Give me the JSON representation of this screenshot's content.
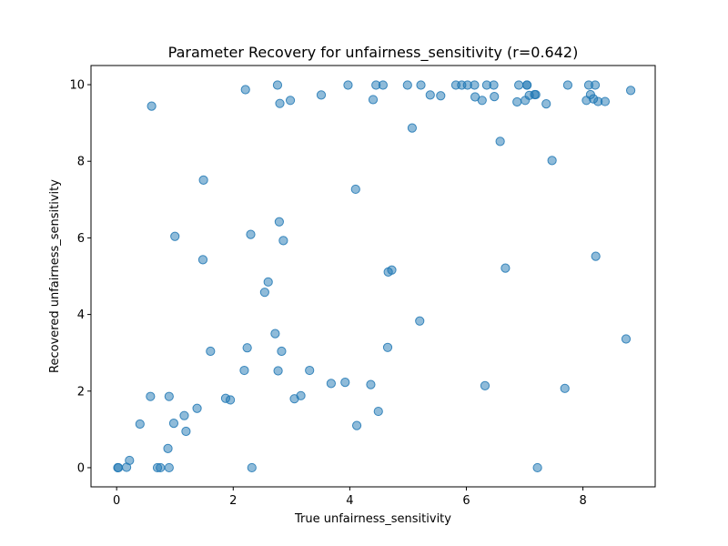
{
  "chart_data": {
    "type": "scatter",
    "title": "Parameter Recovery for unfairness_sensitivity (r=0.642)",
    "xlabel": "True unfairness_sensitivity",
    "ylabel": "Recovered unfairness_sensitivity",
    "xlim": [
      -0.44,
      9.24
    ],
    "ylim": [
      -0.5,
      10.5
    ],
    "xticks": [
      0,
      2,
      4,
      6,
      8
    ],
    "yticks": [
      0,
      2,
      4,
      6,
      8,
      10
    ],
    "grid": false,
    "legend": false,
    "marker_color": "#1f77b4",
    "marker_opacity": 0.5,
    "x": [
      0.02,
      0.03,
      0.17,
      0.22,
      0.4,
      0.58,
      0.6,
      0.7,
      0.75,
      0.88,
      0.9,
      0.9,
      0.98,
      1.0,
      1.16,
      1.19,
      1.38,
      1.48,
      1.49,
      1.61,
      1.87,
      1.95,
      2.19,
      2.21,
      2.24,
      2.3,
      2.32,
      2.54,
      2.6,
      2.72,
      2.76,
      2.77,
      2.79,
      2.8,
      2.83,
      2.86,
      2.98,
      3.05,
      3.16,
      3.31,
      3.51,
      3.68,
      3.92,
      3.97,
      4.1,
      4.12,
      4.36,
      4.4,
      4.45,
      4.49,
      4.57,
      4.65,
      4.66,
      4.72,
      4.99,
      5.07,
      5.2,
      5.22,
      5.38,
      5.56,
      5.82,
      5.92,
      6.02,
      6.14,
      6.15,
      6.27,
      6.32,
      6.35,
      6.47,
      6.48,
      6.58,
      6.67,
      6.87,
      6.9,
      7.01,
      7.04,
      7.04,
      7.08,
      7.17,
      7.19,
      7.22,
      7.37,
      7.47,
      7.69,
      7.74,
      8.06,
      8.1,
      8.13,
      8.18,
      8.21,
      8.22,
      8.26,
      8.38,
      8.74,
      8.82
    ],
    "y": [
      0.0,
      0.0,
      0.01,
      0.19,
      1.14,
      1.86,
      9.44,
      0.0,
      0.0,
      0.5,
      1.86,
      0.0,
      1.16,
      6.04,
      1.36,
      0.95,
      1.55,
      5.43,
      7.51,
      3.04,
      1.81,
      1.77,
      2.54,
      9.87,
      3.13,
      6.09,
      0.0,
      4.58,
      4.85,
      3.5,
      9.99,
      2.53,
      6.42,
      9.51,
      3.04,
      5.93,
      9.59,
      1.8,
      1.88,
      2.54,
      9.73,
      2.2,
      2.23,
      9.99,
      7.27,
      1.1,
      2.17,
      9.61,
      9.99,
      1.47,
      9.99,
      3.14,
      5.11,
      5.16,
      9.99,
      8.87,
      3.83,
      9.99,
      9.73,
      9.71,
      9.99,
      9.99,
      9.99,
      9.99,
      9.68,
      9.59,
      2.14,
      9.99,
      9.99,
      9.69,
      8.52,
      5.21,
      9.55,
      9.99,
      9.59,
      9.99,
      9.99,
      9.72,
      9.74,
      9.74,
      0.0,
      9.5,
      8.02,
      2.07,
      9.99,
      9.59,
      9.99,
      9.74,
      9.63,
      9.99,
      5.52,
      9.56,
      9.56,
      3.36,
      9.85
    ]
  }
}
